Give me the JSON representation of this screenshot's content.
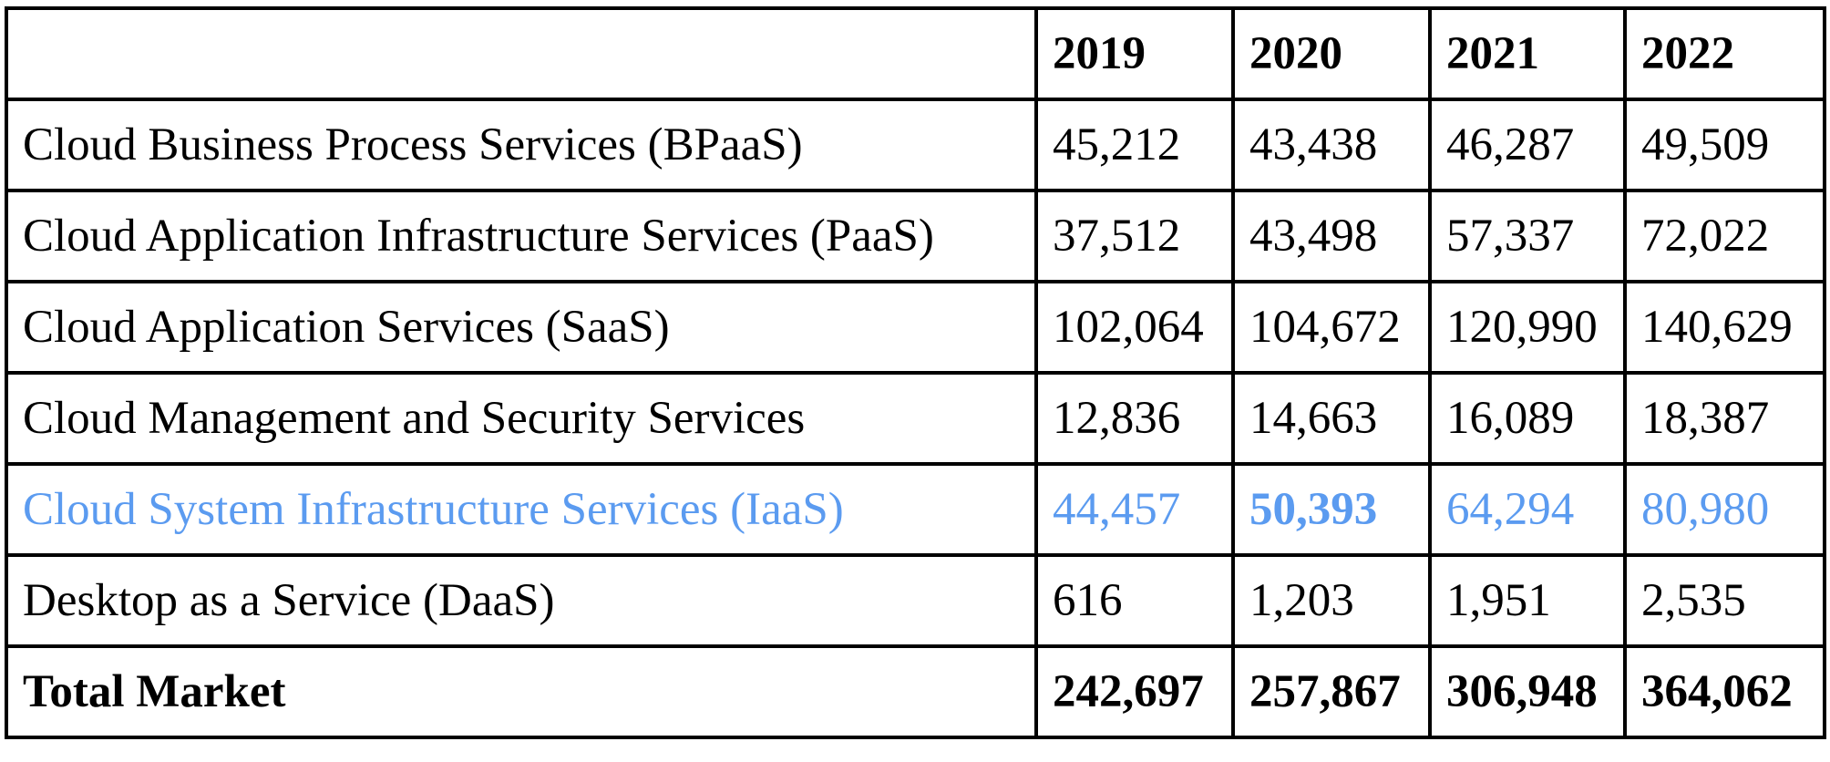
{
  "chart_data": {
    "type": "table",
    "columns": [
      "",
      "2019",
      "2020",
      "2021",
      "2022"
    ],
    "rows": [
      {
        "label": "Cloud Business Process Services (BPaaS)",
        "values": [
          "45,212",
          "43,438",
          "46,287",
          "49,509"
        ]
      },
      {
        "label": "Cloud Application Infrastructure Services (PaaS)",
        "values": [
          "37,512",
          "43,498",
          "57,337",
          "72,022"
        ]
      },
      {
        "label": "Cloud Application Services (SaaS)",
        "values": [
          "102,064",
          "104,672",
          "120,990",
          "140,629"
        ]
      },
      {
        "label": "Cloud Management and Security Services",
        "values": [
          "12,836",
          "14,663",
          "16,089",
          "18,387"
        ]
      },
      {
        "label": "Cloud System Infrastructure Services (IaaS)",
        "values": [
          "44,457",
          "50,393",
          "64,294",
          "80,980"
        ]
      },
      {
        "label": "Desktop as a Service (DaaS)",
        "values": [
          "616",
          "1,203",
          "1,951",
          "2,535"
        ]
      }
    ],
    "total": {
      "label": "Total Market",
      "values": [
        "242,697",
        "257,867",
        "306,948",
        "364,062"
      ]
    },
    "highlight": {
      "row": 4,
      "color": "#5b9bf0",
      "bold_cell": 1
    }
  }
}
